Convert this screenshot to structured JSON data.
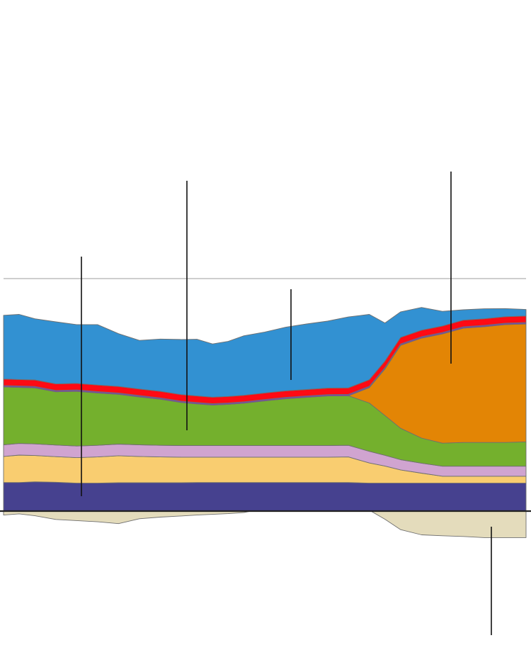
{
  "chart_data": {
    "type": "area",
    "stacked": true,
    "title": "",
    "xlabel": "",
    "ylabel": "",
    "x": [
      0,
      3,
      6,
      10,
      14,
      18,
      22,
      26,
      30,
      34,
      37,
      40,
      43,
      46,
      50,
      54,
      58,
      62,
      66,
      70,
      73,
      76,
      80,
      84,
      88,
      92,
      96,
      100
    ],
    "xlim": [
      0,
      100
    ],
    "ylim": [
      -18,
      100
    ],
    "reference_y": 100,
    "grid": false,
    "legend": "none",
    "series": [
      {
        "color": "#46418f",
        "values": [
          12.3,
          12.3,
          12.6,
          12.4,
          12.0,
          12.0,
          12.2,
          12.2,
          12.2,
          12.2,
          12.3,
          12.3,
          12.3,
          12.3,
          12.3,
          12.3,
          12.3,
          12.3,
          12.3,
          12.0,
          12.0,
          12.0,
          12.0,
          12.0,
          12.0,
          12.0,
          12.0,
          12.0
        ]
      },
      {
        "color": "#f9cd70",
        "values": [
          11.2,
          11.8,
          11.3,
          11.0,
          11.0,
          11.3,
          11.6,
          11.3,
          11.1,
          11.0,
          10.9,
          10.9,
          10.9,
          10.9,
          10.9,
          10.9,
          10.9,
          10.9,
          11.0,
          8.7,
          7.4,
          5.7,
          4.3,
          3.0,
          3.0,
          3.0,
          3.0,
          3.0
        ]
      },
      {
        "color": "#d0a4d0",
        "values": [
          5.0,
          5.0,
          5.0,
          5.0,
          5.0,
          5.0,
          5.0,
          5.0,
          5.0,
          5.0,
          5.0,
          5.0,
          5.0,
          5.0,
          5.0,
          5.0,
          5.0,
          5.0,
          5.0,
          5.0,
          4.6,
          4.4,
          4.3,
          4.3,
          4.3,
          4.3,
          4.3,
          4.3
        ]
      },
      {
        "color": "#74b02d",
        "values": [
          24.9,
          24.1,
          24.1,
          22.9,
          23.5,
          22.5,
          21.4,
          20.6,
          19.8,
          18.5,
          17.9,
          17.4,
          17.7,
          18.2,
          19.2,
          20.1,
          20.7,
          21.3,
          21.3,
          20.8,
          17.1,
          13.5,
          10.8,
          9.9,
          10.2,
          10.2,
          10.2,
          10.5
        ]
      },
      {
        "color": "#e38505",
        "values": [
          0,
          0,
          0,
          0,
          0,
          0,
          0,
          0,
          0,
          0,
          0,
          0,
          0,
          0,
          0,
          0,
          0,
          0,
          0,
          6.6,
          20.0,
          35.7,
          43.0,
          47.0,
          49.2,
          49.8,
          50.7,
          50.7
        ]
      },
      {
        "color": "#7e3fb3",
        "values": [
          0.6,
          0.6,
          0.6,
          0.6,
          0.6,
          0.6,
          0.6,
          0.6,
          0.6,
          0.6,
          0.6,
          0.6,
          0.6,
          0.6,
          0.6,
          0.6,
          0.6,
          0.6,
          0.6,
          0.6,
          0.6,
          0.6,
          0.6,
          0.6,
          0.6,
          0.6,
          0.6,
          0.6
        ]
      },
      {
        "color": "#ff0a14",
        "values": [
          2.8,
          2.8,
          2.8,
          2.8,
          2.8,
          2.8,
          2.8,
          2.8,
          2.8,
          2.8,
          2.8,
          2.8,
          2.8,
          2.8,
          2.8,
          2.8,
          2.8,
          2.8,
          2.8,
          2.8,
          2.8,
          2.8,
          2.8,
          2.8,
          2.8,
          2.8,
          2.8,
          2.8
        ]
      },
      {
        "color": "#3291d2",
        "values": [
          27.4,
          28.0,
          26.3,
          26.7,
          25.3,
          26.0,
          22.7,
          20.9,
          22.5,
          23.7,
          24.4,
          22.9,
          23.7,
          25.6,
          26.2,
          27.4,
          28.2,
          28.8,
          30.5,
          28.1,
          16.4,
          11.0,
          9.8,
          6.3,
          4.5,
          4.3,
          3.5,
          2.8
        ]
      },
      {
        "color": "#e4dcbc",
        "values": [
          -1.7,
          -1.2,
          -2.0,
          -3.6,
          -4.1,
          -4.6,
          -5.4,
          -3.3,
          -2.6,
          -2.1,
          -1.7,
          -1.4,
          -1.1,
          -0.6,
          1.2,
          1.6,
          1.8,
          2.0,
          1.6,
          0.4,
          -3.5,
          -8.0,
          -10.2,
          -10.6,
          -10.9,
          -11.4,
          -11.4,
          -11.4
        ]
      }
    ]
  }
}
